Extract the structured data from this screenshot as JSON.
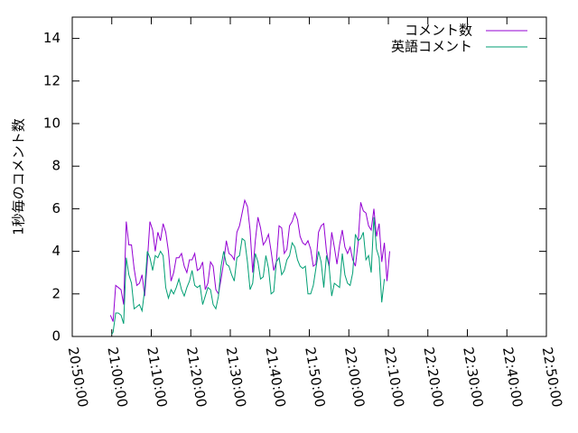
{
  "chart_data": {
    "type": "line",
    "ylabel": "1秒毎のコメント数",
    "xlabel": "",
    "ylim": [
      0,
      15
    ],
    "xlim": [
      "20:50:00",
      "22:50:00"
    ],
    "grid": false,
    "legend_position": "top-right",
    "y_ticks": [
      "0",
      "2",
      "4",
      "6",
      "8",
      "10",
      "12",
      "14"
    ],
    "x_ticks": [
      "20:50:00",
      "21:00:00",
      "21:10:00",
      "21:20:00",
      "21:30:00",
      "21:40:00",
      "21:50:00",
      "22:00:00",
      "22:10:00",
      "22:20:00",
      "22:30:00",
      "22:40:00",
      "22:50:00"
    ],
    "series": [
      {
        "name": "コメント数",
        "color": "#9400d3",
        "points": [
          [
            "20:59:40",
            1.0
          ],
          [
            "21:00:20",
            0.7
          ],
          [
            "21:01:00",
            2.4
          ],
          [
            "21:01:40",
            2.3
          ],
          [
            "21:02:20",
            2.2
          ],
          [
            "21:03:00",
            1.5
          ],
          [
            "21:03:40",
            5.4
          ],
          [
            "21:04:20",
            4.3
          ],
          [
            "21:05:00",
            4.3
          ],
          [
            "21:05:40",
            3.2
          ],
          [
            "21:06:20",
            2.4
          ],
          [
            "21:07:00",
            2.5
          ],
          [
            "21:07:40",
            2.9
          ],
          [
            "21:08:20",
            1.9
          ],
          [
            "21:09:00",
            3.5
          ],
          [
            "21:09:40",
            5.4
          ],
          [
            "21:10:20",
            5.0
          ],
          [
            "21:11:00",
            4.0
          ],
          [
            "21:11:40",
            4.9
          ],
          [
            "21:12:20",
            4.5
          ],
          [
            "21:13:00",
            5.3
          ],
          [
            "21:13:40",
            4.9
          ],
          [
            "21:14:20",
            4.0
          ],
          [
            "21:15:00",
            2.6
          ],
          [
            "21:15:40",
            3.0
          ],
          [
            "21:16:20",
            3.7
          ],
          [
            "21:17:00",
            3.7
          ],
          [
            "21:17:40",
            3.9
          ],
          [
            "21:18:20",
            3.3
          ],
          [
            "21:19:00",
            3.0
          ],
          [
            "21:19:40",
            3.6
          ],
          [
            "21:20:20",
            3.6
          ],
          [
            "21:21:00",
            3.9
          ],
          [
            "21:21:40",
            3.1
          ],
          [
            "21:22:20",
            3.2
          ],
          [
            "21:23:00",
            3.5
          ],
          [
            "21:23:40",
            2.2
          ],
          [
            "21:24:20",
            2.5
          ],
          [
            "21:25:00",
            3.5
          ],
          [
            "21:25:40",
            3.3
          ],
          [
            "21:26:20",
            2.2
          ],
          [
            "21:27:00",
            2.0
          ],
          [
            "21:27:40",
            2.7
          ],
          [
            "21:28:20",
            3.5
          ],
          [
            "21:29:00",
            4.5
          ],
          [
            "21:29:40",
            3.9
          ],
          [
            "21:30:20",
            3.8
          ],
          [
            "21:31:00",
            3.6
          ],
          [
            "21:31:40",
            4.9
          ],
          [
            "21:32:20",
            5.2
          ],
          [
            "21:33:00",
            5.8
          ],
          [
            "21:33:40",
            6.4
          ],
          [
            "21:34:20",
            6.1
          ],
          [
            "21:35:00",
            5.0
          ],
          [
            "21:35:40",
            3.0
          ],
          [
            "21:36:20",
            4.5
          ],
          [
            "21:37:00",
            5.6
          ],
          [
            "21:37:40",
            5.1
          ],
          [
            "21:38:20",
            4.3
          ],
          [
            "21:39:00",
            4.5
          ],
          [
            "21:39:40",
            4.8
          ],
          [
            "21:40:20",
            4.0
          ],
          [
            "21:41:00",
            3.1
          ],
          [
            "21:41:40",
            3.5
          ],
          [
            "21:42:20",
            5.2
          ],
          [
            "21:43:00",
            5.1
          ],
          [
            "21:43:40",
            3.9
          ],
          [
            "21:44:20",
            4.1
          ],
          [
            "21:45:00",
            5.2
          ],
          [
            "21:45:40",
            5.4
          ],
          [
            "21:46:20",
            5.8
          ],
          [
            "21:47:00",
            5.5
          ],
          [
            "21:47:40",
            4.7
          ],
          [
            "21:48:20",
            4.4
          ],
          [
            "21:49:00",
            4.3
          ],
          [
            "21:49:40",
            4.5
          ],
          [
            "21:50:20",
            4.1
          ],
          [
            "21:51:00",
            3.3
          ],
          [
            "21:51:40",
            3.4
          ],
          [
            "21:52:20",
            4.9
          ],
          [
            "21:53:00",
            5.2
          ],
          [
            "21:53:40",
            5.3
          ],
          [
            "21:54:20",
            4.0
          ],
          [
            "21:55:00",
            3.3
          ],
          [
            "21:55:40",
            4.9
          ],
          [
            "21:56:20",
            4.2
          ],
          [
            "21:57:00",
            3.4
          ],
          [
            "21:57:40",
            4.3
          ],
          [
            "21:58:20",
            5.0
          ],
          [
            "21:59:00",
            4.2
          ],
          [
            "21:59:40",
            3.9
          ],
          [
            "22:00:20",
            4.2
          ],
          [
            "22:01:00",
            3.6
          ],
          [
            "22:01:40",
            3.3
          ],
          [
            "22:02:20",
            4.4
          ],
          [
            "22:03:00",
            6.3
          ],
          [
            "22:03:40",
            5.9
          ],
          [
            "22:04:20",
            5.8
          ],
          [
            "22:05:00",
            5.2
          ],
          [
            "22:05:40",
            5.0
          ],
          [
            "22:06:20",
            6.0
          ],
          [
            "22:07:00",
            4.7
          ],
          [
            "22:07:40",
            5.3
          ],
          [
            "22:08:20",
            3.5
          ],
          [
            "22:09:00",
            4.4
          ],
          [
            "22:09:40",
            2.6
          ],
          [
            "22:10:20",
            4.0
          ]
        ]
      },
      {
        "name": "英語コメント",
        "color": "#009e73",
        "points": [
          [
            "21:00:00",
            0.1
          ],
          [
            "21:00:20",
            0.2
          ],
          [
            "21:01:00",
            1.1
          ],
          [
            "21:01:40",
            1.1
          ],
          [
            "21:02:20",
            1.0
          ],
          [
            "21:03:00",
            0.6
          ],
          [
            "21:03:40",
            3.7
          ],
          [
            "21:04:20",
            2.9
          ],
          [
            "21:05:00",
            2.5
          ],
          [
            "21:05:40",
            1.3
          ],
          [
            "21:06:20",
            1.4
          ],
          [
            "21:07:00",
            1.5
          ],
          [
            "21:07:40",
            1.2
          ],
          [
            "21:08:20",
            2.2
          ],
          [
            "21:09:00",
            4.0
          ],
          [
            "21:09:40",
            3.7
          ],
          [
            "21:10:20",
            3.1
          ],
          [
            "21:11:00",
            3.8
          ],
          [
            "21:11:40",
            3.7
          ],
          [
            "21:12:20",
            4.0
          ],
          [
            "21:13:00",
            3.8
          ],
          [
            "21:13:40",
            2.3
          ],
          [
            "21:14:20",
            1.8
          ],
          [
            "21:15:00",
            2.2
          ],
          [
            "21:15:40",
            2.0
          ],
          [
            "21:16:20",
            2.3
          ],
          [
            "21:17:00",
            2.7
          ],
          [
            "21:17:40",
            2.2
          ],
          [
            "21:18:20",
            1.9
          ],
          [
            "21:19:00",
            2.3
          ],
          [
            "21:19:40",
            2.6
          ],
          [
            "21:20:20",
            3.1
          ],
          [
            "21:21:00",
            2.4
          ],
          [
            "21:21:40",
            2.3
          ],
          [
            "21:22:20",
            2.4
          ],
          [
            "21:23:00",
            1.5
          ],
          [
            "21:23:40",
            1.9
          ],
          [
            "21:24:20",
            2.3
          ],
          [
            "21:25:00",
            2.2
          ],
          [
            "21:25:40",
            1.5
          ],
          [
            "21:26:20",
            1.3
          ],
          [
            "21:27:00",
            1.9
          ],
          [
            "21:27:40",
            3.3
          ],
          [
            "21:28:20",
            4.0
          ],
          [
            "21:29:00",
            3.4
          ],
          [
            "21:29:40",
            3.3
          ],
          [
            "21:30:20",
            2.9
          ],
          [
            "21:31:00",
            2.6
          ],
          [
            "21:31:40",
            3.7
          ],
          [
            "21:32:20",
            3.8
          ],
          [
            "21:33:00",
            4.6
          ],
          [
            "21:33:40",
            4.5
          ],
          [
            "21:34:20",
            3.5
          ],
          [
            "21:35:00",
            2.2
          ],
          [
            "21:35:40",
            2.5
          ],
          [
            "21:36:20",
            3.9
          ],
          [
            "21:37:00",
            3.5
          ],
          [
            "21:37:40",
            2.7
          ],
          [
            "21:38:20",
            2.8
          ],
          [
            "21:39:00",
            3.8
          ],
          [
            "21:39:40",
            3.2
          ],
          [
            "21:40:20",
            2.0
          ],
          [
            "21:41:00",
            2.1
          ],
          [
            "21:41:40",
            3.5
          ],
          [
            "21:42:20",
            3.7
          ],
          [
            "21:43:00",
            2.9
          ],
          [
            "21:43:40",
            3.1
          ],
          [
            "21:44:20",
            3.6
          ],
          [
            "21:45:00",
            3.8
          ],
          [
            "21:45:40",
            4.4
          ],
          [
            "21:46:20",
            4.2
          ],
          [
            "21:47:00",
            3.6
          ],
          [
            "21:47:40",
            3.3
          ],
          [
            "21:48:20",
            3.2
          ],
          [
            "21:49:00",
            3.3
          ],
          [
            "21:49:40",
            2.0
          ],
          [
            "21:50:20",
            2.0
          ],
          [
            "21:51:00",
            2.4
          ],
          [
            "21:51:40",
            3.2
          ],
          [
            "21:52:20",
            4.0
          ],
          [
            "21:53:00",
            3.5
          ],
          [
            "21:53:40",
            2.3
          ],
          [
            "21:54:20",
            3.8
          ],
          [
            "21:55:00",
            3.3
          ],
          [
            "21:55:40",
            1.9
          ],
          [
            "21:56:20",
            2.5
          ],
          [
            "21:57:00",
            2.4
          ],
          [
            "21:57:40",
            2.3
          ],
          [
            "21:58:20",
            3.9
          ],
          [
            "21:59:00",
            2.9
          ],
          [
            "21:59:40",
            2.5
          ],
          [
            "22:00:20",
            2.4
          ],
          [
            "22:01:00",
            3.0
          ],
          [
            "22:01:40",
            4.8
          ],
          [
            "22:02:20",
            4.5
          ],
          [
            "22:03:00",
            4.6
          ],
          [
            "22:03:40",
            4.9
          ],
          [
            "22:04:20",
            3.6
          ],
          [
            "22:05:00",
            3.8
          ],
          [
            "22:05:40",
            3.0
          ],
          [
            "22:06:20",
            5.6
          ],
          [
            "22:07:00",
            4.1
          ],
          [
            "22:07:40",
            3.7
          ],
          [
            "22:08:20",
            1.6
          ],
          [
            "22:09:00",
            2.7
          ]
        ]
      }
    ]
  }
}
